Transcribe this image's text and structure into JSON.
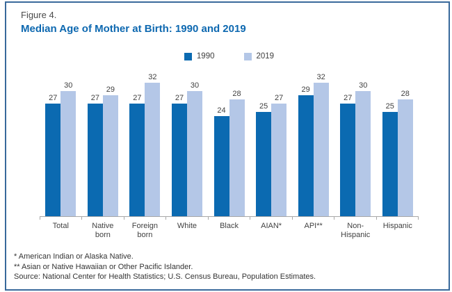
{
  "figure": {
    "label": "Figure 4.",
    "title": "Median Age of Mother at Birth: 1990 and 2019"
  },
  "chart_data": {
    "type": "bar",
    "title": "Median Age of Mother at Birth: 1990 and 2019",
    "categories": [
      "Total",
      "Native born",
      "Foreign born",
      "White",
      "Black",
      "AIAN*",
      "API**",
      "Non-Hispanic",
      "Hispanic"
    ],
    "category_lines": [
      [
        "Total"
      ],
      [
        "Native",
        "born"
      ],
      [
        "Foreign",
        "born"
      ],
      [
        "White"
      ],
      [
        "Black"
      ],
      [
        "AIAN*"
      ],
      [
        "API**"
      ],
      [
        "Non-",
        "Hispanic"
      ],
      [
        "Hispanic"
      ]
    ],
    "series": [
      {
        "name": "1990",
        "color": "#0b6ab1",
        "values": [
          27,
          27,
          27,
          27,
          24,
          25,
          29,
          27,
          25
        ]
      },
      {
        "name": "2019",
        "color": "#b4c7e7",
        "values": [
          30,
          29,
          32,
          30,
          28,
          27,
          32,
          30,
          28
        ]
      }
    ],
    "ylim": [
      0,
      32
    ],
    "value_labels": true,
    "grid": false,
    "legend_position": "top-center",
    "xlabel": "",
    "ylabel": ""
  },
  "footnotes": [
    "* American Indian or Alaska Native.",
    "** Asian or Native Hawaiian or Other Pacific Islander.",
    "Source: National Center for Health Statistics; U.S. Census Bureau, Population Estimates."
  ],
  "colors": {
    "bar_1990": "#0b6ab1",
    "bar_2019": "#b4c7e7",
    "title": "#0d68b0",
    "frame_border": "#38699b",
    "axis": "#a8a8a8",
    "text": "#3f3f3f"
  }
}
